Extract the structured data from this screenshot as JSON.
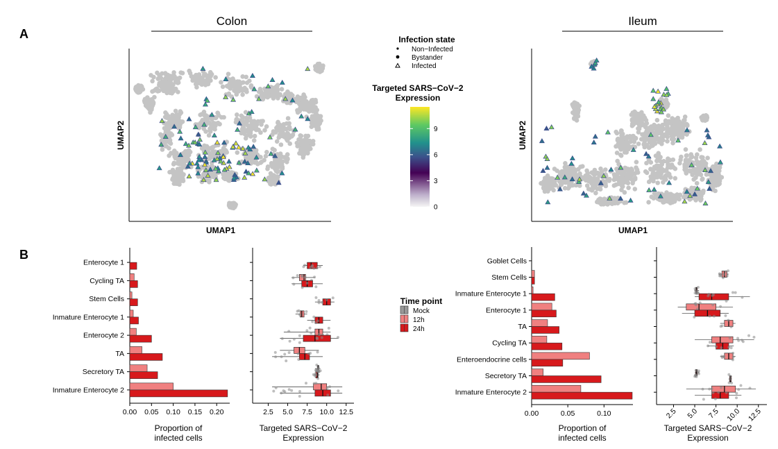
{
  "panel_labels": [
    "A",
    "B"
  ],
  "colors": {
    "mock": "#999999",
    "h12": "#f08080",
    "h24": "#d7191c",
    "cloud": "#c4c4c4",
    "viridis": [
      "#440154",
      "#3b528b",
      "#21918c",
      "#5ec962",
      "#fde725"
    ]
  },
  "umap_colon": {
    "title": "Colon",
    "xlabel": "UMAP1",
    "ylabel": "UMAP2"
  },
  "umap_ileum": {
    "title": "Ileum",
    "xlabel": "UMAP1",
    "ylabel": "UMAP2"
  },
  "infection_legend": {
    "title": "Infection state",
    "items": [
      {
        "label": "Non−Infected",
        "shape": "dot-small"
      },
      {
        "label": "Bystander",
        "shape": "dot"
      },
      {
        "label": "Infected",
        "shape": "triangle"
      }
    ]
  },
  "expression_legend": {
    "title_line1": "Targeted SARS−CoV−2",
    "title_line2": "Expression",
    "ticks": [
      "0",
      "3",
      "6",
      "9"
    ],
    "tick_values": [
      0,
      3,
      6,
      9
    ],
    "max": 11.5
  },
  "time_legend": {
    "title": "Time point",
    "items": [
      {
        "label": "Mock",
        "color_key": "mock"
      },
      {
        "label": "12h",
        "color_key": "h12"
      },
      {
        "label": "24h",
        "color_key": "h24"
      }
    ]
  },
  "chart_data": [
    {
      "id": "colon_prop",
      "type": "bar",
      "orientation": "horizontal",
      "xlabel_line1": "Proportion of",
      "xlabel_line2": "infected cells",
      "categories": [
        "Enterocyte 1",
        "Cycling TA",
        "Stem Cells",
        "Inmature Enterocyte 1",
        "Enterocyte 2",
        "TA",
        "Secretory TA",
        "Inmature Enterocyte 2"
      ],
      "xlim": [
        0,
        0.23
      ],
      "ticks": [
        0.0,
        0.05,
        0.1,
        0.15,
        0.2
      ],
      "tick_labels": [
        "0.00",
        "0.05",
        "0.10",
        "0.15",
        "0.20"
      ],
      "series": [
        {
          "name": "12h",
          "values": [
            0.0,
            0.01,
            0.005,
            0.008,
            0.015,
            0.028,
            0.04,
            0.1
          ]
        },
        {
          "name": "24h",
          "values": [
            0.016,
            0.018,
            0.018,
            0.02,
            0.05,
            0.075,
            0.064,
            0.225
          ]
        }
      ]
    },
    {
      "id": "colon_expr",
      "type": "box",
      "orientation": "horizontal",
      "xlabel_line1": "Targeted SARS−CoV−2",
      "xlabel_line2": "Expression",
      "categories": [
        "Enterocyte 1",
        "Cycling TA",
        "Stem Cells",
        "Inmature Enterocyte 1",
        "Enterocyte 2",
        "TA",
        "Secretory TA",
        "Inmature Enterocyte 2"
      ],
      "xlim": [
        0.5,
        13.5
      ],
      "ticks": [
        2.5,
        5.0,
        7.5,
        10.0,
        12.5
      ],
      "tick_labels": [
        "2.5",
        "5.0",
        "7.5",
        "10.0",
        "12.5"
      ],
      "tick_rotate": 0,
      "series": [
        {
          "name": "12h",
          "boxes": [
            null,
            [
              5.5,
              6.5,
              7.1,
              7.3,
              8.5
            ],
            null,
            [
              6.0,
              6.6,
              6.8,
              7.1,
              7.5
            ],
            [
              4.5,
              8.5,
              9.0,
              9.5,
              10.5
            ],
            [
              4.0,
              5.8,
              6.5,
              7.2,
              9.0
            ],
            [
              8.5,
              8.8,
              8.9,
              9.0,
              9.2
            ],
            [
              3.0,
              8.3,
              9.3,
              10.0,
              12.0
            ]
          ]
        },
        {
          "name": "24h",
          "boxes": [
            [
              7.0,
              7.5,
              8.0,
              8.8,
              9.5
            ],
            [
              5.5,
              6.8,
              7.5,
              8.2,
              9.5
            ],
            [
              8.5,
              9.5,
              10.0,
              10.5,
              11.0
            ],
            [
              7.5,
              8.5,
              9.0,
              9.5,
              10.5
            ],
            [
              4.0,
              7.0,
              8.5,
              10.5,
              11.5
            ],
            [
              3.0,
              6.5,
              7.2,
              7.8,
              9.5
            ],
            [
              8.3,
              8.6,
              8.8,
              8.9,
              9.1
            ],
            [
              4.0,
              8.5,
              9.5,
              10.5,
              12.0
            ]
          ]
        }
      ]
    },
    {
      "id": "ileum_prop",
      "type": "bar",
      "orientation": "horizontal",
      "xlabel_line1": "Proportion of",
      "xlabel_line2": "infected cells",
      "categories": [
        "Goblet Cells",
        "Stem Cells",
        "Inmature Enterocyte 1",
        "Enterocyte 1",
        "TA",
        "Cycling TA",
        "Enteroendocrine cells",
        "Secretory TA",
        "Inmature Enterocyte 2"
      ],
      "xlim": [
        0,
        0.14
      ],
      "ticks": [
        0.0,
        0.05,
        0.1
      ],
      "tick_labels": [
        "0.00",
        "0.05",
        "0.10"
      ],
      "series": [
        {
          "name": "12h",
          "values": [
            0.0,
            0.004,
            0.002,
            0.028,
            0.022,
            0.021,
            0.08,
            0.016,
            0.068
          ]
        },
        {
          "name": "24h",
          "values": [
            0.0,
            0.004,
            0.032,
            0.034,
            0.038,
            0.042,
            0.043,
            0.096,
            0.139
          ]
        }
      ]
    },
    {
      "id": "ileum_expr",
      "type": "box",
      "orientation": "horizontal",
      "xlabel_line1": "Targeted SARS−CoV−2",
      "xlabel_line2": "Expression",
      "categories": [
        "Goblet Cells",
        "Stem Cells",
        "Inmature Enterocyte 1",
        "Enterocyte 1",
        "TA",
        "Cycling TA",
        "Enteroendocrine cells",
        "Secretory TA",
        "Inmature Enterocyte 2"
      ],
      "xlim": [
        0.5,
        13.5
      ],
      "ticks": [
        2.5,
        5.0,
        7.5,
        10.0,
        12.5
      ],
      "tick_labels": [
        "2.5",
        "5.0",
        "7.5",
        "10.0",
        "12.5"
      ],
      "tick_rotate": -45,
      "series": [
        {
          "name": "12h",
          "boxes": [
            null,
            [
              7.8,
              8.2,
              8.5,
              8.8,
              9.0
            ],
            [
              5.0,
              5.1,
              5.2,
              5.3,
              5.5
            ],
            [
              3.0,
              4.0,
              5.5,
              7.5,
              9.5
            ],
            [
              8.0,
              8.5,
              9.0,
              9.5,
              9.8
            ],
            [
              5.0,
              7.0,
              8.0,
              9.5,
              12.0
            ],
            [
              8.0,
              8.5,
              9.0,
              9.5,
              9.8
            ],
            [
              5.0,
              5.1,
              5.2,
              5.3,
              5.5
            ],
            [
              4.0,
              7.0,
              8.5,
              9.8,
              12.2
            ]
          ]
        },
        {
          "name": "24h",
          "boxes": [
            null,
            null,
            [
              5.0,
              5.5,
              7.0,
              9.0,
              11.5
            ],
            [
              3.5,
              5.0,
              6.5,
              8.0,
              9.0
            ],
            null,
            [
              6.5,
              7.5,
              8.3,
              9.0,
              9.6
            ],
            null,
            [
              9.0,
              9.1,
              9.2,
              9.3,
              9.4
            ],
            [
              5.0,
              7.0,
              8.0,
              9.0,
              10.5
            ]
          ]
        }
      ]
    }
  ]
}
